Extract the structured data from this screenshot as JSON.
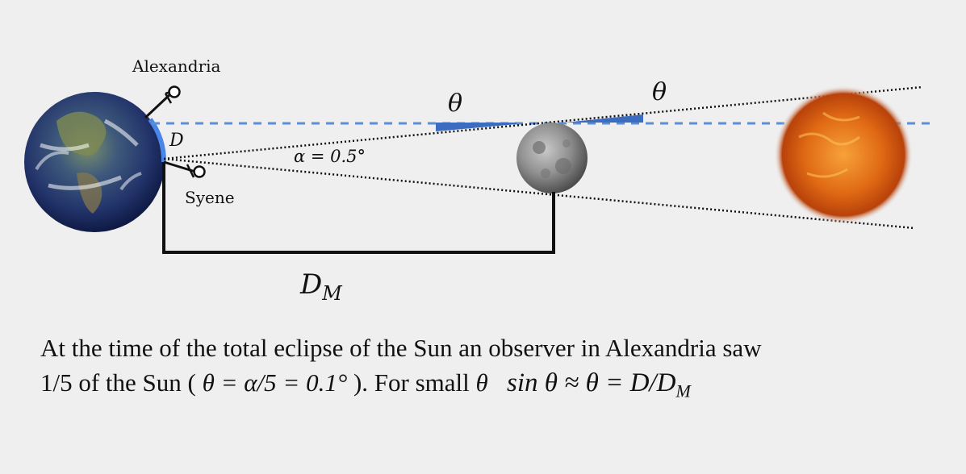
{
  "labels": {
    "alexandria": "Alexandria",
    "syene": "Syene",
    "arc": "D",
    "alpha": "α = 0.5°",
    "theta_moon": "θ",
    "theta_sun": "θ",
    "distance_main": "D",
    "distance_sub": "M"
  },
  "colors": {
    "background": "#efefef",
    "sightline": "#5b8fd8",
    "arc": "#4a86e8",
    "theta_wedge": "#3c6cc0"
  },
  "caption": {
    "line1": "At the time of the total eclipse of the Sun an observer in Alexandria saw",
    "line2_a": "1/5 of the Sun (",
    "line2_formula": "θ = α/5 = 0.1°",
    "line2_b": " ). For small ",
    "line2_theta": "θ",
    "line2_equation": "sin θ ≈ θ = D/D",
    "line2_equation_sub": "M"
  }
}
